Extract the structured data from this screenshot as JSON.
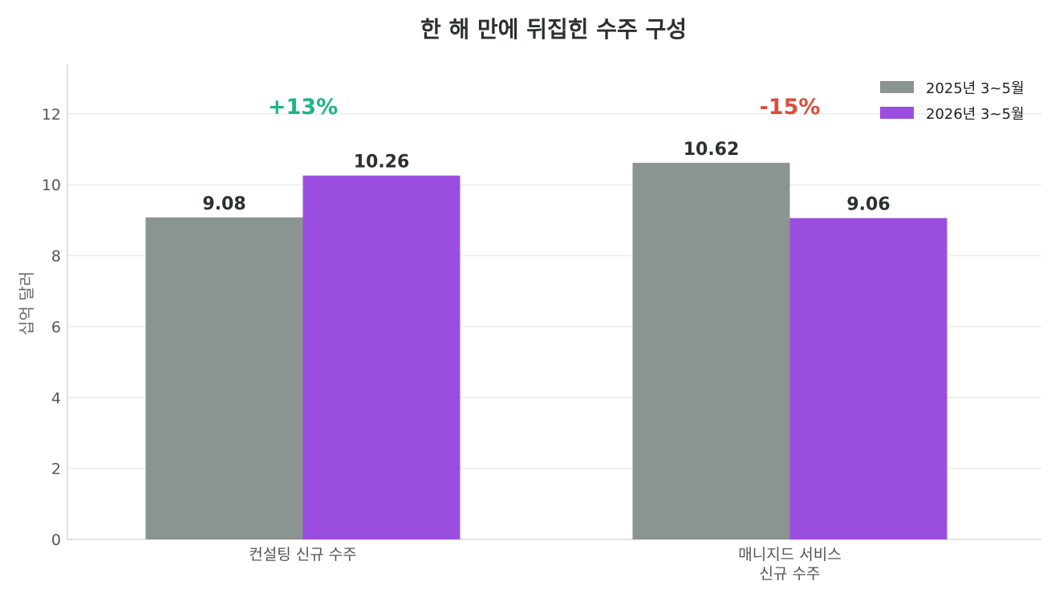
{
  "chart_data": {
    "type": "bar",
    "title": "한 해 만에 뒤집힌 수주 구성",
    "xlabel": "",
    "ylabel": "십억 달러",
    "ylim": [
      0,
      13.4
    ],
    "yticks": [
      "0",
      "2",
      "4",
      "6",
      "8",
      "10",
      "12"
    ],
    "grid": true,
    "legend_position": "top-right",
    "categories": [
      [
        "컨설팅 신규 수주"
      ],
      [
        "매니지드 서비스",
        "신규 수주"
      ]
    ],
    "series": [
      {
        "name": "2025년 3~5월",
        "color": "#8a9490",
        "values": [
          9.08,
          10.62
        ],
        "labels": [
          "9.08",
          "10.62"
        ]
      },
      {
        "name": "2026년 3~5월",
        "color": "#9b4de0",
        "values": [
          10.26,
          9.06
        ],
        "labels": [
          "10.26",
          "9.06"
        ]
      }
    ],
    "annotations": [
      {
        "category": 0,
        "text": "+13%",
        "color": "#1db58a"
      },
      {
        "category": 1,
        "text": "-15%",
        "color": "#d94f3d"
      }
    ]
  }
}
